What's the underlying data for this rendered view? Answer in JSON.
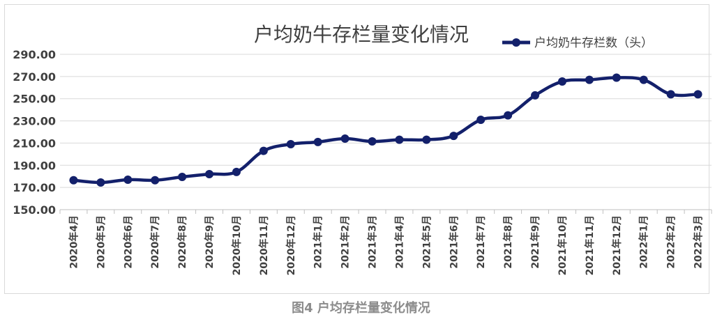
{
  "chart_data": {
    "type": "line",
    "title": "户均奶牛存栏量变化情况",
    "xlabel": "",
    "ylabel": "",
    "ylim": [
      150,
      290
    ],
    "yticks": [
      "150.00",
      "170.00",
      "190.00",
      "210.00",
      "230.00",
      "250.00",
      "270.00",
      "290.00"
    ],
    "categories": [
      "2020年4月",
      "2020年5月",
      "2020年6月",
      "2020年7月",
      "2020年8月",
      "2020年9月",
      "2020年10月",
      "2020年11月",
      "2020年12月",
      "2021年1月",
      "2021年2月",
      "2021年3月",
      "2021年4月",
      "2021年5月",
      "2021年6月",
      "2021年7月",
      "2021年8月",
      "2021年9月",
      "2021年10月",
      "2021年11月",
      "2021年12月",
      "2022年1月",
      "2022年2月",
      "2022年3月"
    ],
    "series": [
      {
        "name": "户均奶牛存栏数（头）",
        "color": "#13206b",
        "values": [
          176.5,
          174.5,
          177,
          176.5,
          179.5,
          182,
          184,
          203,
          209,
          211,
          214,
          211.5,
          213,
          213,
          216.5,
          231,
          235,
          253,
          265.5,
          267,
          269,
          267,
          254,
          254
        ]
      }
    ],
    "grid": true,
    "legend_position": "top-right"
  },
  "caption": "图4  户均存栏量变化情况"
}
